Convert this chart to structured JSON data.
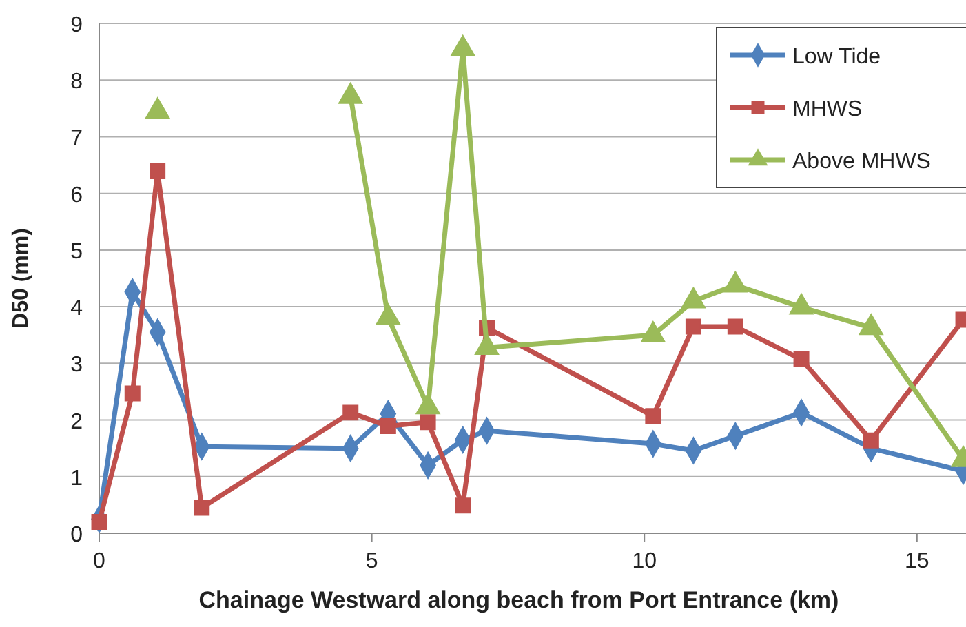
{
  "chart_data": {
    "type": "line",
    "xlabel": "Chainage Westward along beach from Port Entrance (km)",
    "ylabel": "D50 (mm)",
    "x": [
      0,
      0.61,
      1.07,
      1.88,
      4.61,
      5.3,
      6.03,
      6.67,
      7.11,
      10.16,
      10.9,
      11.67,
      12.88,
      14.16,
      15.85
    ],
    "xlim": [
      0,
      15.9
    ],
    "xticks": [
      0,
      5,
      10,
      15
    ],
    "ylim": [
      0,
      9
    ],
    "yticks": [
      0,
      1,
      2,
      3,
      4,
      5,
      6,
      7,
      8,
      9
    ],
    "grid": "y",
    "legend": "top right",
    "line_style": "solid",
    "series": [
      {
        "name": "Low Tide",
        "color": "#4f81bd",
        "marker": "diamond",
        "values": [
          0.25,
          4.26,
          3.55,
          1.53,
          1.5,
          2.11,
          1.2,
          1.65,
          1.81,
          1.58,
          1.46,
          1.72,
          2.13,
          1.5,
          1.1
        ]
      },
      {
        "name": "MHWS",
        "color": "#c0504d",
        "marker": "square",
        "values": [
          0.2,
          2.47,
          6.39,
          0.45,
          2.13,
          1.89,
          1.96,
          0.49,
          3.63,
          2.07,
          3.65,
          3.65,
          3.07,
          1.64,
          3.77
        ]
      },
      {
        "name": "Above MHWS",
        "color": "#9bbb59",
        "marker": "triangle",
        "values": [
          null,
          null,
          7.45,
          null,
          7.71,
          3.81,
          2.23,
          8.55,
          3.28,
          3.5,
          4.1,
          4.38,
          3.99,
          3.63,
          1.3
        ]
      }
    ]
  }
}
